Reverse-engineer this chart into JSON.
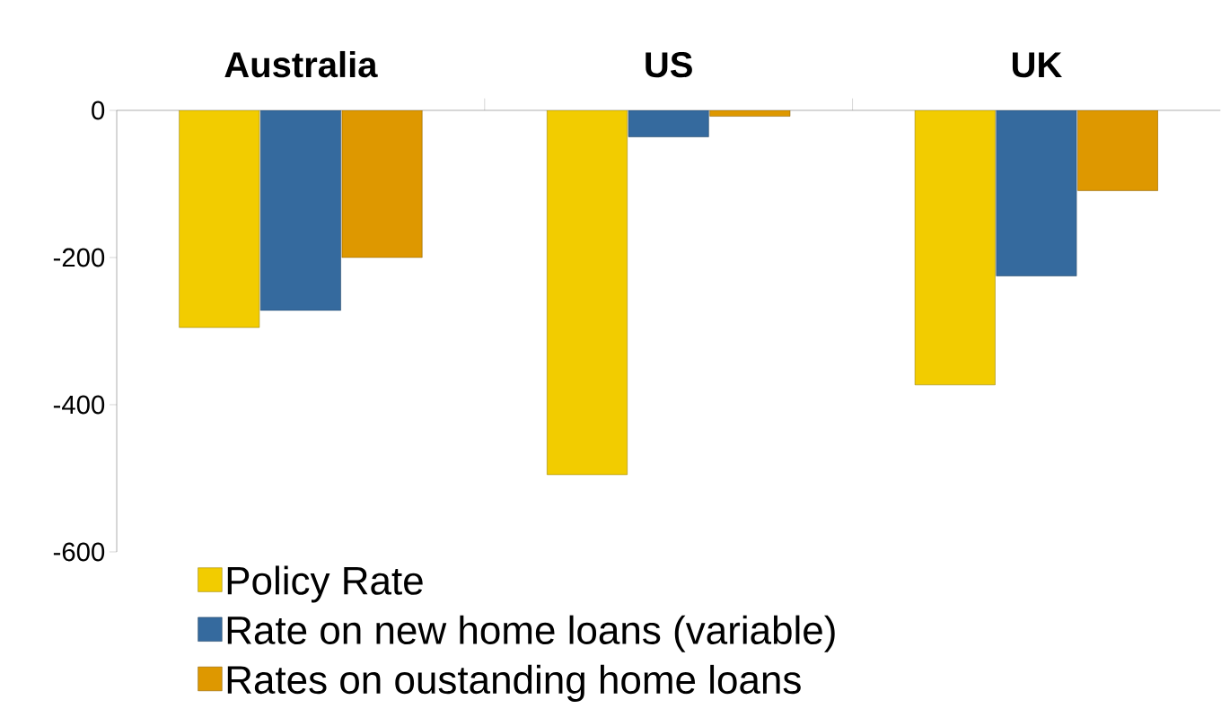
{
  "chart_data": {
    "type": "bar",
    "categories": [
      "Australia",
      "US",
      "UK"
    ],
    "series": [
      {
        "name": "Policy Rate",
        "color": "#f2cc00",
        "values": [
          -295,
          -495,
          -373
        ]
      },
      {
        "name": "Rate on new home loans (variable)",
        "color": "#356a9e",
        "values": [
          -272,
          -36,
          -225
        ]
      },
      {
        "name": "Rates on oustanding home loans",
        "color": "#de9800",
        "values": [
          -200,
          -8,
          -109
        ]
      }
    ],
    "ylim": [
      -600,
      0
    ],
    "yticks": [
      0,
      -200,
      -400,
      -600
    ],
    "grid": false,
    "legend": "bottom left"
  }
}
